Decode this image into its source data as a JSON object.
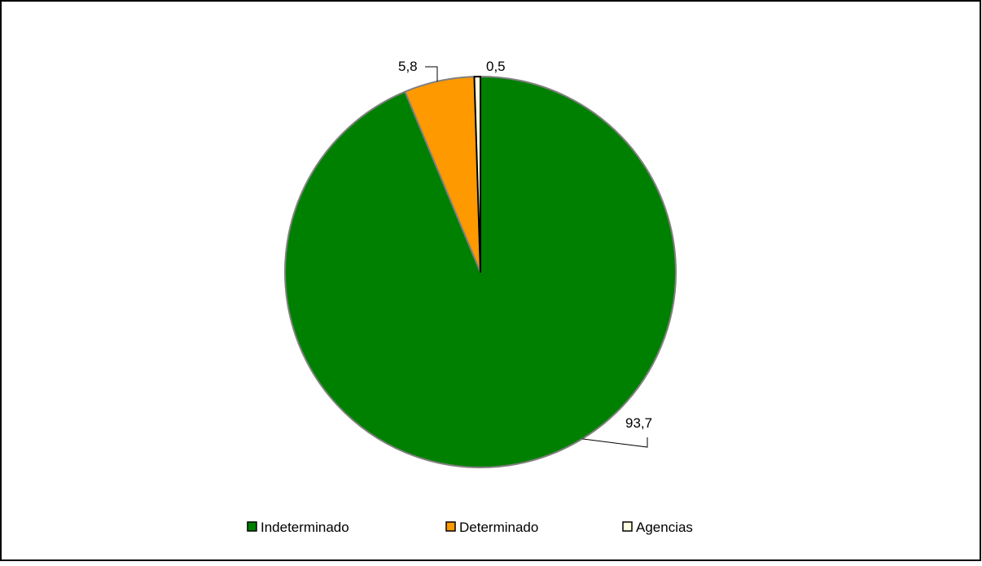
{
  "chart_data": {
    "type": "pie",
    "title": "",
    "categories": [
      "Indeterminado",
      "Determinado",
      "Agencias"
    ],
    "values": [
      93.7,
      5.8,
      0.5
    ],
    "value_labels": [
      "93,7",
      "5,8",
      "0,5"
    ],
    "colors": [
      "#008000",
      "#FF9900",
      "#FFFFE1"
    ],
    "slice_border_color": "#808080",
    "start_angle_deg": 0,
    "direction": "clockwise",
    "legend_position": "bottom"
  }
}
